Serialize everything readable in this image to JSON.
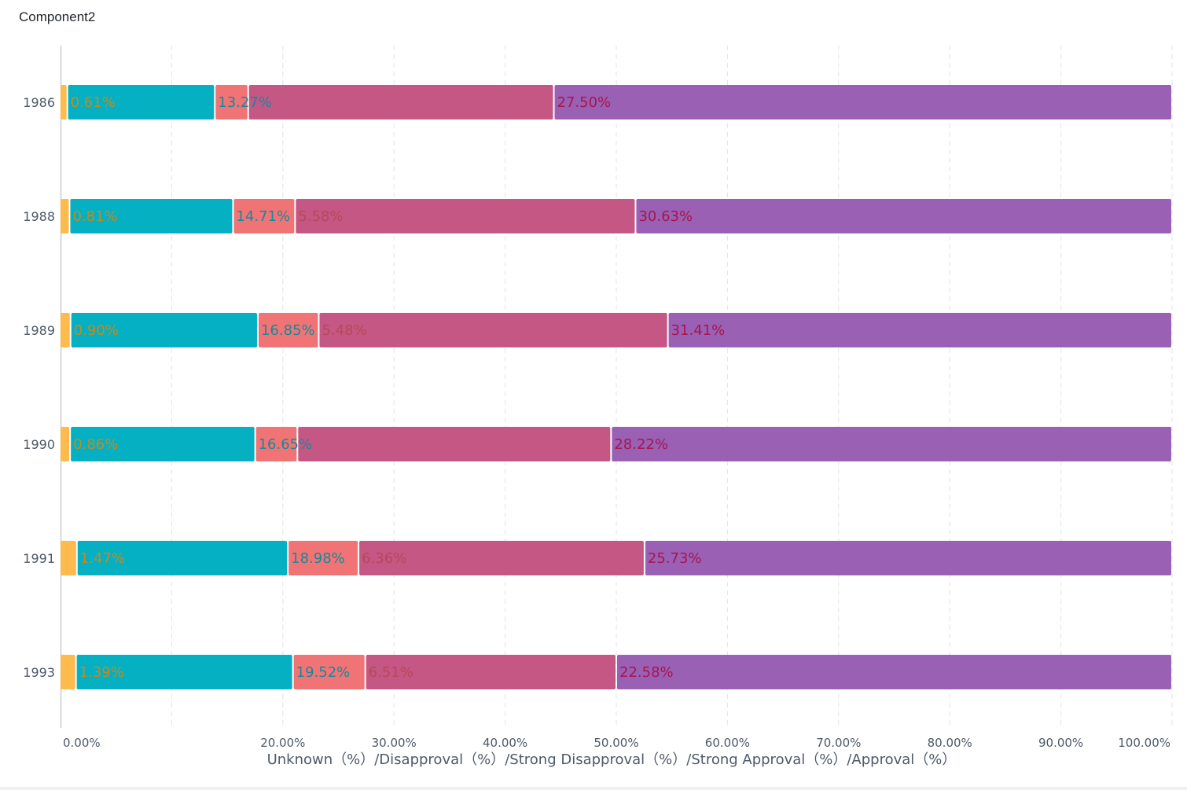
{
  "title": "Component2",
  "chart_data": {
    "type": "bar",
    "orientation": "horizontal",
    "stacked": true,
    "normalized": true,
    "title": "Component2",
    "categories": [
      "1986",
      "1988",
      "1989",
      "1990",
      "1991",
      "1993"
    ],
    "series": [
      {
        "name": "Unknown (%)",
        "color": "#FDBA4D",
        "label_color": "#C8891A",
        "values": [
          0.61,
          0.81,
          0.9,
          0.86,
          1.47,
          1.39
        ],
        "labels_visible": [
          true,
          true,
          true,
          true,
          true,
          true
        ]
      },
      {
        "name": "Disapproval (%)",
        "color": "#04B0C2",
        "label_color": "#138A9C",
        "values": [
          13.27,
          14.71,
          16.85,
          16.65,
          18.98,
          19.52
        ],
        "labels_visible": [
          true,
          true,
          true,
          true,
          true,
          true
        ]
      },
      {
        "name": "Strong Disapproval (%)",
        "color": "#F07475",
        "label_color": "#B8475A",
        "values": [
          3.0,
          5.58,
          5.48,
          3.8,
          6.36,
          6.51
        ],
        "labels_visible": [
          false,
          true,
          true,
          false,
          true,
          true
        ]
      },
      {
        "name": "Strong Approval (%)",
        "color": "#C55784",
        "label_color": "#A8154F",
        "values": [
          27.5,
          30.63,
          31.41,
          28.22,
          25.73,
          22.58
        ],
        "labels_visible": [
          true,
          true,
          true,
          true,
          true,
          true
        ]
      },
      {
        "name": "Approval (%)",
        "color": "#9A60B3",
        "label_color": "#6A2C86",
        "values": [
          55.62,
          48.27,
          45.36,
          50.47,
          47.46,
          50.0
        ],
        "labels_visible": [
          false,
          false,
          false,
          false,
          false,
          false
        ]
      }
    ],
    "xaxis": {
      "ticks": [
        "0.00%",
        "",
        "20.00%",
        "30.00%",
        "40.00%",
        "50.00%",
        "60.00%",
        "70.00%",
        "80.00%",
        "90.00%",
        "100.00%"
      ],
      "range": [
        0,
        100
      ],
      "label": "Unknown（%）/Disapproval（%）/Strong Disapproval（%）/Strong Approval（%）/Approval（%）"
    },
    "grid": "vertical dashed",
    "legend": "none"
  }
}
